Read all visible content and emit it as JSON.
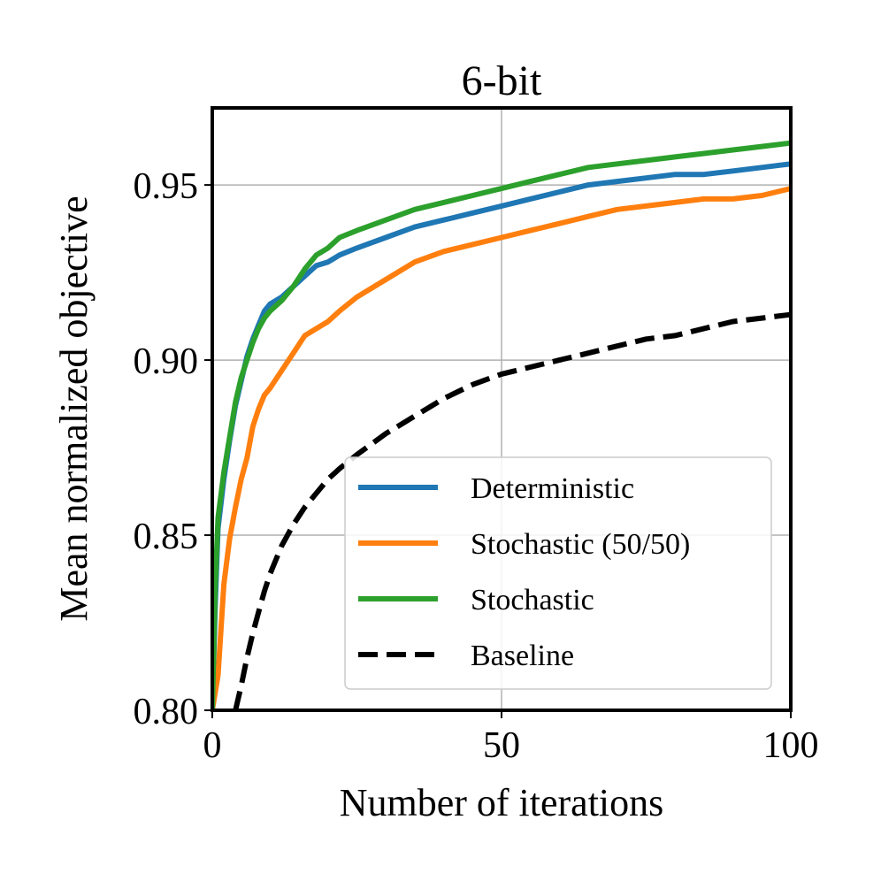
{
  "chart_data": {
    "type": "line",
    "title": "6-bit",
    "xlabel": "Number of iterations",
    "ylabel": "Mean normalized objective",
    "xlim": [
      0,
      100
    ],
    "ylim": [
      0.8,
      0.972
    ],
    "xticks": [
      0,
      50,
      100
    ],
    "xtick_labels": [
      "0",
      "50",
      "100"
    ],
    "yticks": [
      0.8,
      0.85,
      0.9,
      0.95
    ],
    "ytick_labels": [
      "0.80",
      "0.85",
      "0.90",
      "0.95"
    ],
    "grid": true,
    "legend_position": "lower-right",
    "series": [
      {
        "name": "Deterministic",
        "color": "#1f77b4",
        "dash": "solid",
        "x": [
          0,
          0.5,
          1,
          2,
          3,
          4,
          5,
          6,
          7,
          8,
          9,
          10,
          12,
          14,
          16,
          18,
          20,
          22,
          25,
          30,
          35,
          40,
          45,
          50,
          55,
          60,
          65,
          70,
          75,
          80,
          85,
          90,
          95,
          100
        ],
        "y": [
          0.8,
          0.83,
          0.852,
          0.866,
          0.877,
          0.887,
          0.894,
          0.901,
          0.906,
          0.91,
          0.914,
          0.916,
          0.918,
          0.921,
          0.924,
          0.927,
          0.928,
          0.93,
          0.932,
          0.935,
          0.938,
          0.94,
          0.942,
          0.944,
          0.946,
          0.948,
          0.95,
          0.951,
          0.952,
          0.953,
          0.953,
          0.954,
          0.955,
          0.956
        ]
      },
      {
        "name": "Stochastic (50/50)",
        "color": "#ff7f0e",
        "dash": "solid",
        "x": [
          0,
          1,
          2,
          3,
          4,
          5,
          6,
          7,
          8,
          9,
          10,
          12,
          14,
          16,
          18,
          20,
          22,
          25,
          30,
          35,
          40,
          45,
          50,
          55,
          60,
          65,
          70,
          75,
          80,
          85,
          90,
          95,
          100
        ],
        "y": [
          0.8,
          0.81,
          0.836,
          0.849,
          0.858,
          0.866,
          0.872,
          0.881,
          0.886,
          0.89,
          0.892,
          0.897,
          0.902,
          0.907,
          0.909,
          0.911,
          0.914,
          0.918,
          0.923,
          0.928,
          0.931,
          0.933,
          0.935,
          0.937,
          0.939,
          0.941,
          0.943,
          0.944,
          0.945,
          0.946,
          0.946,
          0.947,
          0.949
        ]
      },
      {
        "name": "Stochastic",
        "color": "#2ca02c",
        "dash": "solid",
        "x": [
          0,
          0.5,
          1,
          2,
          3,
          4,
          5,
          6,
          7,
          8,
          9,
          10,
          12,
          14,
          16,
          18,
          20,
          22,
          25,
          30,
          35,
          40,
          45,
          50,
          55,
          60,
          65,
          70,
          75,
          80,
          85,
          90,
          95,
          100
        ],
        "y": [
          0.8,
          0.835,
          0.855,
          0.868,
          0.878,
          0.888,
          0.895,
          0.9,
          0.905,
          0.909,
          0.912,
          0.914,
          0.917,
          0.921,
          0.926,
          0.93,
          0.932,
          0.935,
          0.937,
          0.94,
          0.943,
          0.945,
          0.947,
          0.949,
          0.951,
          0.953,
          0.955,
          0.956,
          0.957,
          0.958,
          0.959,
          0.96,
          0.961,
          0.962
        ]
      },
      {
        "name": "Baseline",
        "color": "#000000",
        "dash": "dashed",
        "x": [
          4,
          5,
          6,
          7,
          8,
          9,
          10,
          12,
          14,
          16,
          18,
          20,
          22,
          25,
          30,
          35,
          40,
          45,
          50,
          55,
          60,
          65,
          70,
          75,
          80,
          85,
          90,
          95,
          100
        ],
        "y": [
          0.8,
          0.807,
          0.815,
          0.822,
          0.828,
          0.834,
          0.839,
          0.847,
          0.853,
          0.858,
          0.862,
          0.866,
          0.869,
          0.873,
          0.879,
          0.884,
          0.889,
          0.893,
          0.896,
          0.898,
          0.9,
          0.902,
          0.904,
          0.906,
          0.907,
          0.909,
          0.911,
          0.912,
          0.913
        ]
      }
    ]
  }
}
